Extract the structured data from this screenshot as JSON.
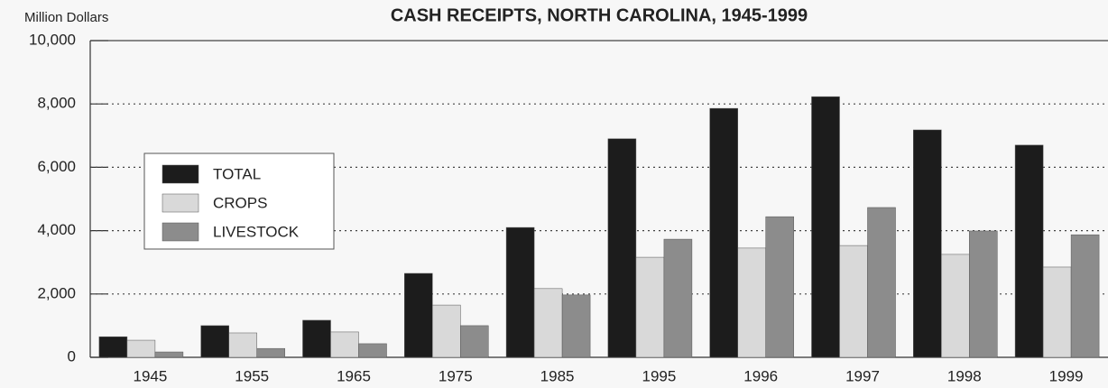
{
  "chart_data": {
    "type": "bar",
    "title": "CASH RECEIPTS, NORTH CAROLINA, 1945-1999",
    "y_label": "Million Dollars",
    "categories": [
      "1945",
      "1955",
      "1965",
      "1975",
      "1985",
      "1995",
      "1996",
      "1997",
      "1998",
      "1999"
    ],
    "series": [
      {
        "name": "TOTAL",
        "color": "#1c1c1c",
        "values": [
          650,
          1000,
          1170,
          2650,
          4100,
          6900,
          7860,
          8230,
          7180,
          6700
        ]
      },
      {
        "name": "CROPS",
        "color": "#d9d9d9",
        "values": [
          540,
          770,
          800,
          1650,
          2170,
          3160,
          3450,
          3530,
          3250,
          2850
        ]
      },
      {
        "name": "LIVESTOCK",
        "color": "#8c8c8c",
        "values": [
          170,
          280,
          430,
          1000,
          1970,
          3730,
          4440,
          4730,
          3990,
          3870
        ]
      }
    ],
    "ylim": [
      0,
      10000
    ],
    "yticks": [
      0,
      {
        "value": 2000,
        "label": "2,000"
      },
      {
        "value": 4000,
        "label": "4,000"
      },
      {
        "value": 6000,
        "label": "6,000"
      },
      {
        "value": 8000,
        "label": "8,000"
      },
      {
        "value": 10000,
        "label": "10,000"
      }
    ],
    "grid": true
  }
}
